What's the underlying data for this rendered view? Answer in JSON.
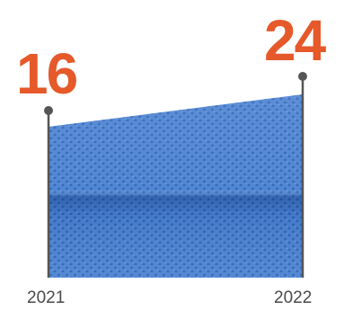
{
  "chart_data": {
    "type": "area",
    "x": [
      "2021",
      "2022"
    ],
    "series": [
      {
        "values": [
          16,
          24
        ]
      }
    ],
    "data_labels": [
      "16",
      "24"
    ],
    "xlabel": "",
    "ylabel": "",
    "grid": false,
    "legend": "none"
  },
  "colors": {
    "accent": "#e5592a",
    "fill": "#3f78c8",
    "fill_dark": "#2a5ea8",
    "stem": "#555555",
    "axis_text": "#4a4a4a"
  }
}
